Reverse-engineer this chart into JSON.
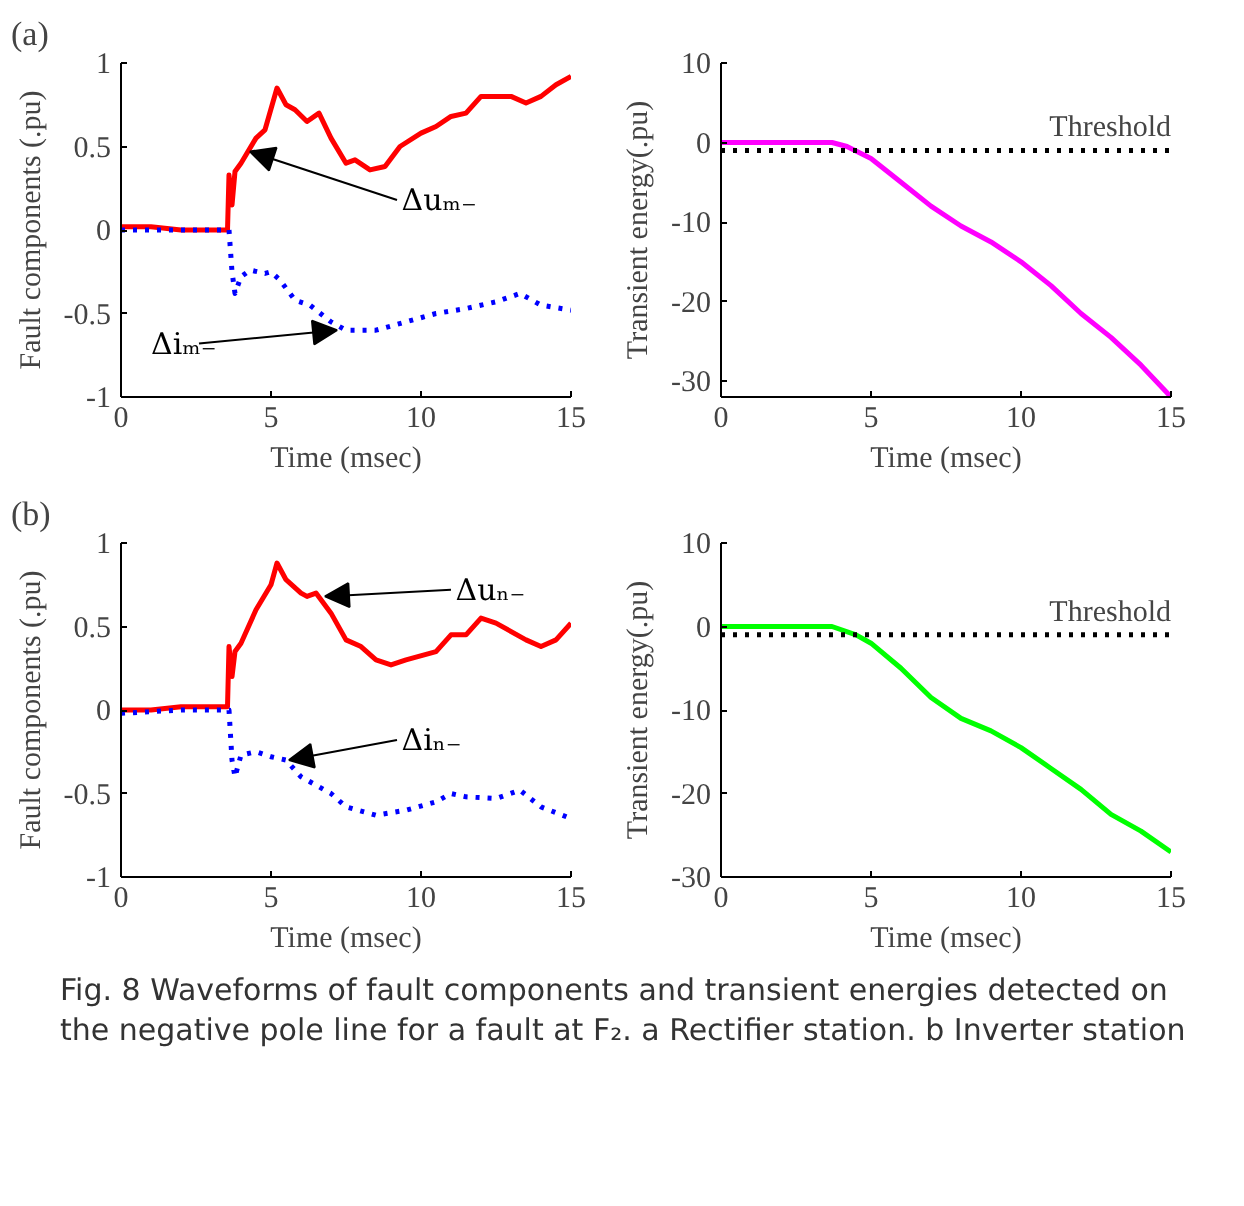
{
  "chart_data": [
    {
      "type": "line",
      "title": "(a)",
      "xlabel": "Time (msec)",
      "ylabel": "Fault components (.pu)",
      "xlim": [
        0,
        15
      ],
      "ylim": [
        -1,
        1
      ],
      "xticks": [
        0,
        5,
        10,
        15
      ],
      "yticks": [
        -1,
        -0.5,
        0,
        0.5,
        1
      ],
      "grid": false,
      "series": [
        {
          "name": "Δuₘ₋",
          "color": "#ff0000",
          "line_style": "solid",
          "x": [
            0,
            1,
            2,
            3,
            3.55,
            3.6,
            3.7,
            3.8,
            4,
            4.5,
            4.8,
            5.2,
            5.5,
            5.8,
            6.2,
            6.6,
            7,
            7.5,
            7.8,
            8.3,
            8.8,
            9.3,
            10,
            10.5,
            11,
            11.5,
            12,
            13,
            13.5,
            14,
            14.5,
            15
          ],
          "values": [
            0.02,
            0.02,
            0,
            0,
            0,
            0.33,
            0.15,
            0.35,
            0.4,
            0.55,
            0.6,
            0.85,
            0.75,
            0.72,
            0.65,
            0.7,
            0.55,
            0.4,
            0.42,
            0.36,
            0.38,
            0.5,
            0.58,
            0.62,
            0.68,
            0.7,
            0.8,
            0.8,
            0.76,
            0.8,
            0.87,
            0.92
          ]
        },
        {
          "name": "Δiₘ₋",
          "color": "#0000ff",
          "line_style": "dotted",
          "x": [
            0,
            1,
            2,
            3,
            3.6,
            3.7,
            3.8,
            4,
            4.3,
            4.8,
            5,
            5.3,
            5.8,
            6.3,
            7,
            7.5,
            8.5,
            9.5,
            10.5,
            11.5,
            12.5,
            13.3,
            14,
            15
          ],
          "values": [
            0,
            0,
            0,
            0,
            0,
            -0.25,
            -0.38,
            -0.28,
            -0.24,
            -0.26,
            -0.25,
            -0.3,
            -0.42,
            -0.45,
            -0.55,
            -0.6,
            -0.6,
            -0.55,
            -0.5,
            -0.47,
            -0.43,
            -0.38,
            -0.45,
            -0.48
          ]
        }
      ]
    },
    {
      "type": "line",
      "xlabel": "Time (msec)",
      "ylabel": "Transient energy(.pu)",
      "xlim": [
        0,
        15
      ],
      "ylim": [
        -32,
        10
      ],
      "xticks": [
        0,
        5,
        10,
        15
      ],
      "yticks": [
        -30,
        -20,
        -10,
        0,
        10
      ],
      "grid": false,
      "series": [
        {
          "color": "#ff00ff",
          "line_style": "solid",
          "x": [
            0,
            3.7,
            4.2,
            5,
            6,
            7,
            8,
            9,
            10,
            11,
            12,
            13,
            14,
            15
          ],
          "values": [
            0,
            0,
            -0.5,
            -2,
            -5,
            -8,
            -10.5,
            -12.5,
            -15,
            -18,
            -21.5,
            -24.5,
            -28,
            -32
          ]
        }
      ],
      "ref_lines": [
        {
          "axis": "y",
          "value": -1,
          "label": "Threshold",
          "color": "#000000",
          "line_style": "dotted"
        }
      ]
    },
    {
      "type": "line",
      "title": "(b)",
      "xlabel": "Time (msec)",
      "ylabel": "Fault components (.pu)",
      "xlim": [
        0,
        15
      ],
      "ylim": [
        -1,
        1
      ],
      "xticks": [
        0,
        5,
        10,
        15
      ],
      "yticks": [
        -1,
        -0.5,
        0,
        0.5,
        1
      ],
      "grid": false,
      "series": [
        {
          "name": "Δuₙ₋",
          "color": "#ff0000",
          "line_style": "solid",
          "x": [
            0,
            1,
            2,
            3,
            3.55,
            3.6,
            3.7,
            3.8,
            4,
            4.5,
            5,
            5.2,
            5.5,
            6,
            6.2,
            6.5,
            7,
            7.5,
            8,
            8.5,
            9,
            9.5,
            10.5,
            11,
            11.5,
            12,
            12.5,
            13.5,
            14,
            14.5,
            15
          ],
          "values": [
            0,
            0,
            0.02,
            0.02,
            0.02,
            0.38,
            0.2,
            0.35,
            0.4,
            0.6,
            0.75,
            0.88,
            0.78,
            0.7,
            0.68,
            0.7,
            0.58,
            0.42,
            0.38,
            0.3,
            0.27,
            0.3,
            0.35,
            0.45,
            0.45,
            0.55,
            0.52,
            0.42,
            0.38,
            0.42,
            0.52
          ]
        },
        {
          "name": "Δiₙ₋",
          "color": "#0000ff",
          "line_style": "dotted",
          "x": [
            0,
            1,
            2,
            3,
            3.6,
            3.7,
            3.8,
            4,
            4.5,
            5,
            5.5,
            6,
            6.5,
            7,
            7.5,
            8.5,
            9.5,
            10.5,
            11,
            11.5,
            12.5,
            13.3,
            14,
            15
          ],
          "values": [
            -0.02,
            -0.01,
            0,
            0,
            0,
            -0.3,
            -0.4,
            -0.27,
            -0.25,
            -0.28,
            -0.3,
            -0.4,
            -0.45,
            -0.5,
            -0.58,
            -0.63,
            -0.6,
            -0.55,
            -0.5,
            -0.52,
            -0.53,
            -0.48,
            -0.58,
            -0.65
          ]
        }
      ]
    },
    {
      "type": "line",
      "xlabel": "Time (msec)",
      "ylabel": "Transient energy(.pu)",
      "xlim": [
        0,
        15
      ],
      "ylim": [
        -30,
        10
      ],
      "xticks": [
        0,
        5,
        10,
        15
      ],
      "yticks": [
        -30,
        -20,
        -10,
        0,
        10
      ],
      "grid": false,
      "series": [
        {
          "color": "#00ff00",
          "line_style": "solid",
          "x": [
            0,
            3.7,
            4.5,
            5,
            6,
            7,
            8,
            9,
            10,
            11,
            12,
            13,
            14,
            15
          ],
          "values": [
            0,
            0,
            -1,
            -2,
            -5,
            -8.5,
            -11,
            -12.5,
            -14.5,
            -17,
            -19.5,
            -22.5,
            -24.5,
            -27
          ]
        }
      ],
      "ref_lines": [
        {
          "axis": "y",
          "value": -1,
          "label": "Threshold",
          "color": "#000000",
          "line_style": "dotted"
        }
      ],
      "annotations": [
        "Fig. 8 Waveforms of fault components and transient energies detected on the negative pole line for a fault at F₂. a Rectifier station. b Inverter station"
      ]
    }
  ]
}
